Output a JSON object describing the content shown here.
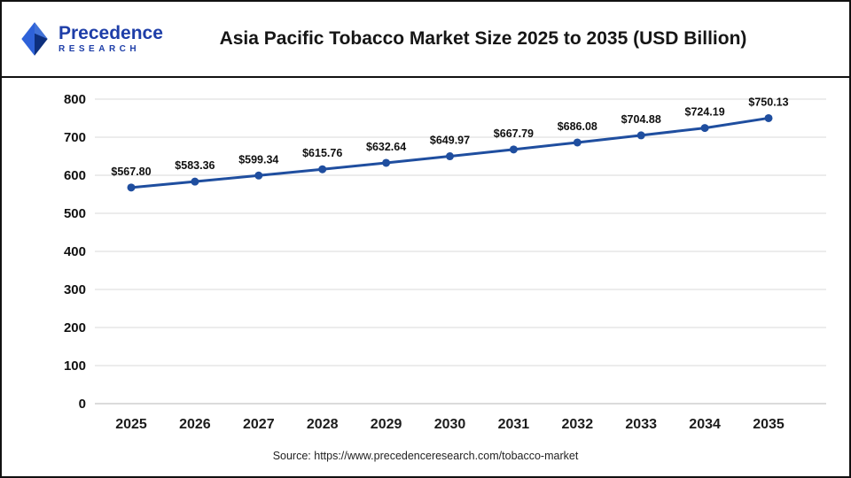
{
  "header": {
    "logo": {
      "line1": "Precedence",
      "line2": "RESEARCH"
    },
    "title": "Asia Pacific Tobacco Market Size 2025 to 2035 (USD Billion)"
  },
  "footer": {
    "source": "Source: https://www.precedenceresearch.com/tobacco-market"
  },
  "colors": {
    "line": "#1f4e9f",
    "marker": "#1f4e9f",
    "gridline": "#d9d9d9",
    "baseline": "#b7b7b7",
    "logo_blue": "#1e3ea8",
    "logo_blue_dark": "#0d2f7d",
    "logo_blue_light": "#2e62d9"
  },
  "chart_data": {
    "type": "line",
    "title": "Asia Pacific Tobacco Market Size 2025 to 2035 (USD Billion)",
    "categories": [
      "2025",
      "2026",
      "2027",
      "2028",
      "2029",
      "2030",
      "2031",
      "2032",
      "2033",
      "2034",
      "2035"
    ],
    "values": [
      567.8,
      583.36,
      599.34,
      615.76,
      632.64,
      649.97,
      667.79,
      686.08,
      704.88,
      724.19,
      750.13
    ],
    "labels": [
      "$567.80",
      "$583.36",
      "$599.34",
      "$615.76",
      "$632.64",
      "$649.97",
      "$667.79",
      "$686.08",
      "$704.88",
      "$724.19",
      "$750.13"
    ],
    "xlabel": "",
    "ylabel": "",
    "ylim": [
      0,
      800
    ],
    "yticks": [
      0,
      100,
      200,
      300,
      400,
      500,
      600,
      700,
      800
    ],
    "grid": true,
    "legend": "none",
    "line_color": "#1f4e9f"
  }
}
